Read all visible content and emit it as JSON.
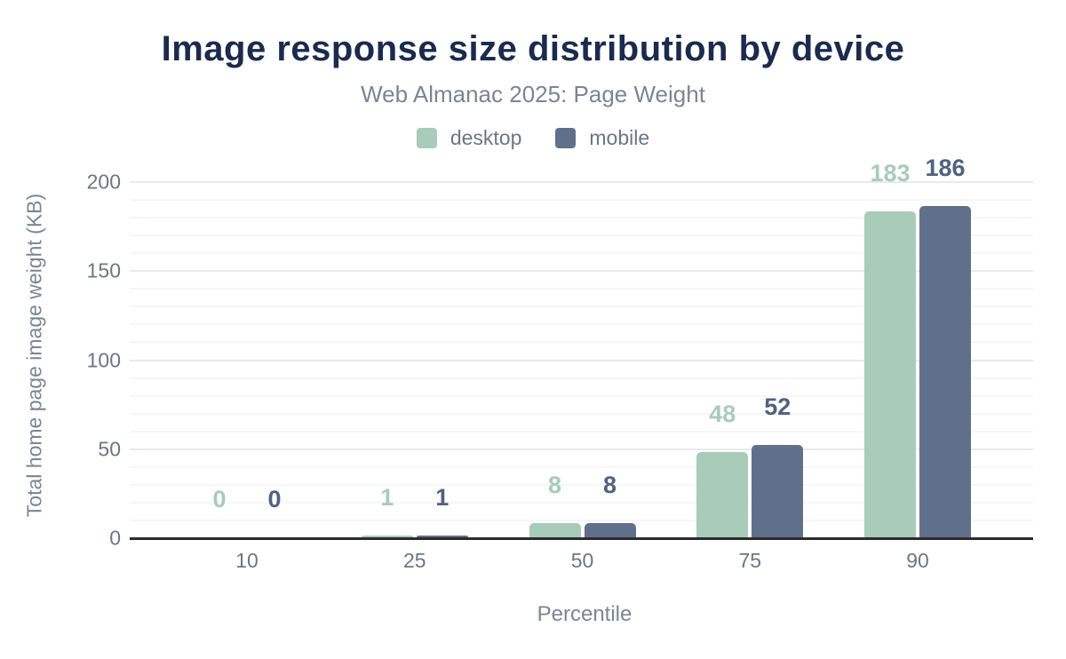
{
  "header": {
    "title": "Image response size distribution by device",
    "subtitle": "Web Almanac 2025: Page Weight"
  },
  "legend": [
    {
      "label": "desktop",
      "color": "#a9cbba"
    },
    {
      "label": "mobile",
      "color": "#60708b"
    }
  ],
  "chart_data": {
    "type": "bar",
    "title": "Image response size distribution by device",
    "subtitle": "Web Almanac 2025: Page Weight",
    "categories": [
      "10",
      "25",
      "50",
      "75",
      "90"
    ],
    "series": [
      {
        "name": "desktop",
        "color": "#a9cbba",
        "label_color": "#a9cbba",
        "values": [
          0,
          1,
          8,
          48,
          183
        ]
      },
      {
        "name": "mobile",
        "color": "#60708b",
        "label_color": "#51627e",
        "values": [
          0,
          1,
          8,
          52,
          186
        ]
      }
    ],
    "xlabel": "Percentile",
    "ylabel": "Total home page image weight (KB)",
    "ylim": [
      0,
      200
    ],
    "yticks": [
      0,
      50,
      100,
      150,
      200
    ],
    "grid": "horizontal, minor every 10, major every 50",
    "legend_position": "top",
    "value_labels": "above bars, colored per series"
  },
  "colors": {
    "title": "#1b2b4e",
    "subtitle": "#7b8593",
    "tick_labels": "#6c7682",
    "axis_titles": "#7b8593",
    "baseline": "#2b2b2b",
    "grid_minor": "#f5f6f6",
    "grid_major": "#e9eaec",
    "background": "#ffffff"
  }
}
